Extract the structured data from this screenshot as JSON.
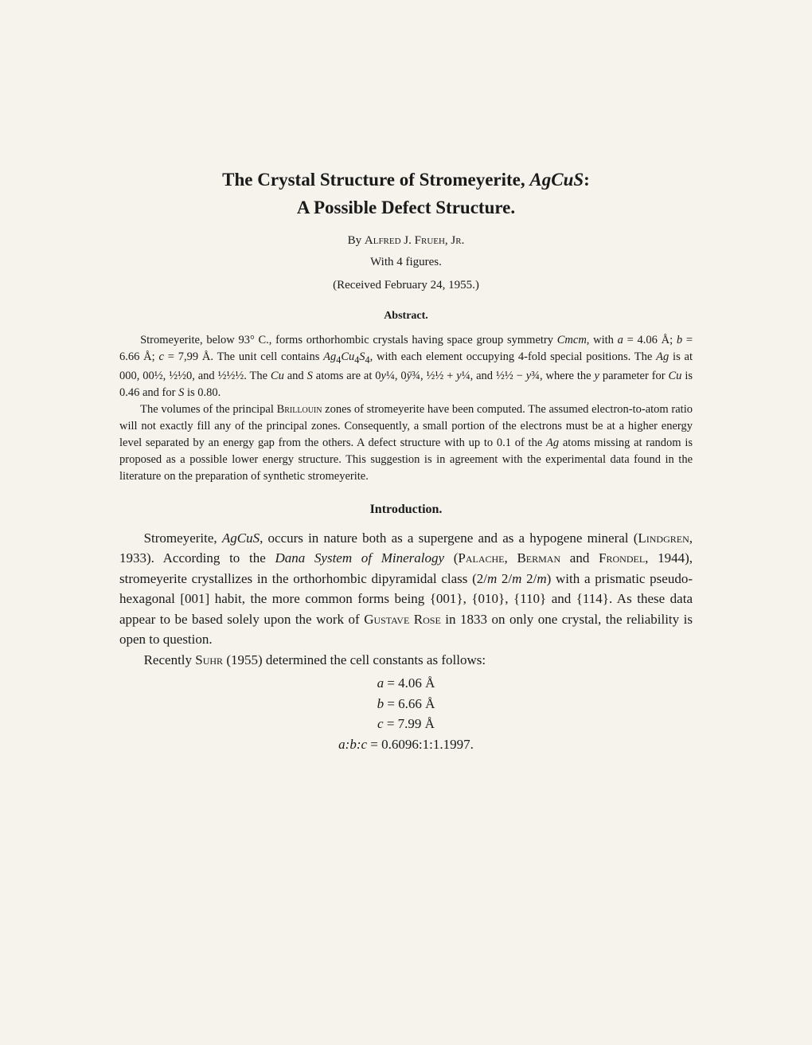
{
  "title_line1": "The Crystal Structure of Stromeyerite, AgCuS:",
  "title_line2": "A Possible Defect Structure.",
  "author_by": "By ",
  "author_name": "Alfred J. Frueh, Jr.",
  "figures_line": "With 4 figures.",
  "received_line": "(Received February 24, 1955.)",
  "abstract_heading": "Abstract.",
  "abstract_p1_html": "Stromeyerite, below 93° C., forms orthorhombic crystals having space group symmetry <i>Cmcm</i>, with <i>a</i> = 4.06 Å; <i>b</i> = 6.66 Å; <i>c</i> = 7,99 Å. The unit cell contains <i>Ag</i><sub>4</sub><i>Cu</i><sub>4</sub><i>S</i><sub>4</sub>, with each element occupying 4-fold special positions. The <i>Ag</i> is at 000, 00½, ½½0, and ½½½. The <i>Cu</i> and <i>S</i> atoms are at 0<i>y</i>¼, 0<i>ȳ</i>¾, ½½ + <i>y</i>¼, and ½½ − <i>y</i>¾, where the <i>y</i> parameter for <i>Cu</i> is 0.46 and for <i>S</i> is 0.80.",
  "abstract_p2_html": "The volumes of the principal <span class=\"smallcaps\">Brillouin</span> zones of stromeyerite have been computed. The assumed electron-to-atom ratio will not exactly fill any of the principal zones. Consequently, a small portion of the electrons must be at a higher energy level separated by an energy gap from the others. A defect structure with up to 0.1 of the <i>Ag</i> atoms missing at random is proposed as a possible lower energy structure. This suggestion is in agreement with the experimental data found in the literature on the preparation of synthetic stromeyerite.",
  "intro_heading": "Introduction.",
  "intro_p1_html": "Stromeyerite, <i>AgCuS</i>, occurs in nature both as a supergene and as a hypogene mineral (<span class=\"smallcaps\">Lindgren</span>, 1933). According to the <i>Dana System of Mineralogy</i> (<span class=\"smallcaps\">Palache</span>, <span class=\"smallcaps\">Berman</span> and <span class=\"smallcaps\">Frondel</span>, 1944), stromeyerite crystallizes in the orthorhombic dipyramidal class (2/<i>m</i> 2/<i>m</i> 2/<i>m</i>) with a prismatic pseudo-hexagonal [001] habit, the more common forms being {001}, {010}, {110} and {114}. As these data appear to be based solely upon the work of <span class=\"smallcaps\">Gustave Rose</span> in 1833 on only one crystal, the reliability is open to question.",
  "intro_p2_html": "Recently <span class=\"smallcaps\">Suhr</span> (1955) determined the cell constants as follows:",
  "eq1": "a = 4.06 Å",
  "eq2": "b = 6.66 Å",
  "eq3": "c = 7.99 Å",
  "eq4_html": "<i>a</i>:<i>b</i>:<i>c</i> <span class=\"upright\">= 0.6096:1:1.1997.</span>",
  "colors": {
    "background": "#f5f3ec",
    "text": "#1a1a1a"
  },
  "fonts": {
    "family": "Times New Roman",
    "title_size_pt": 17,
    "body_size_pt": 13,
    "abstract_size_pt": 11
  }
}
